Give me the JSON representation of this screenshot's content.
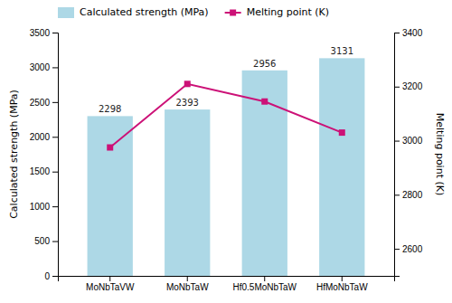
{
  "chart_data": {
    "type": "bar",
    "categories": [
      "MoNbTaVW",
      "MoNbTaW",
      "Hf0.5MoNbTaW",
      "HfMoNbTaW"
    ],
    "ylabel": "Calculated strength (MPa)",
    "y2label": "Melting point (K)",
    "ylim": [
      0,
      3500
    ],
    "yticks": [
      0,
      500,
      1000,
      1500,
      2000,
      2500,
      3000,
      3500
    ],
    "y2lim": [
      2500,
      3400
    ],
    "y2ticks": [
      2600,
      2800,
      3000,
      3200,
      3400
    ],
    "legend": "upper left",
    "grid": false,
    "data_labels": true,
    "series": [
      {
        "name": "Calculated strength (MPa)",
        "type": "bar",
        "color": "#add8e6",
        "values": [
          2298,
          2393,
          2956,
          3131
        ]
      },
      {
        "name": "Melting point (K)",
        "type": "line",
        "axis": "y2",
        "color": "#cc1177",
        "marker": "square",
        "values": [
          2975,
          3210,
          3145,
          3030
        ]
      }
    ]
  }
}
